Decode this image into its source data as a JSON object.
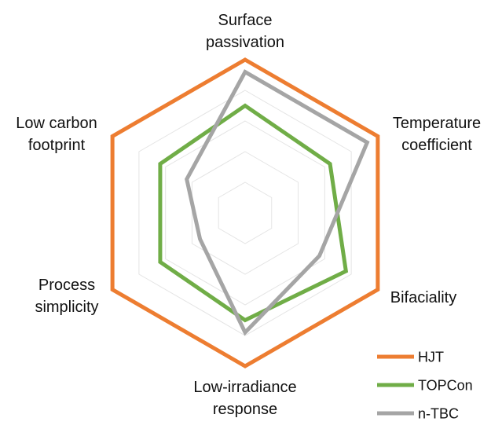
{
  "chart_data": {
    "type": "radar",
    "axes": [
      {
        "label_lines": [
          "Surface",
          "passivation"
        ]
      },
      {
        "label_lines": [
          "Temperature",
          "coefficient"
        ]
      },
      {
        "label_lines": [
          "Bifaciality"
        ]
      },
      {
        "label_lines": [
          "Low-irradiance",
          "response"
        ]
      },
      {
        "label_lines": [
          "Process",
          "simplicity"
        ]
      },
      {
        "label_lines": [
          "Low carbon",
          "footprint"
        ]
      }
    ],
    "scale": {
      "min": 0,
      "max": 5,
      "grid_levels": 5
    },
    "series": [
      {
        "name": "HJT",
        "color": "#ED7D31",
        "values": [
          5,
          5,
          5,
          5,
          5,
          5
        ]
      },
      {
        "name": "TOPCon",
        "color": "#70AD47",
        "values": [
          3.5,
          3.2,
          3.8,
          3.5,
          3.2,
          3.2
        ]
      },
      {
        "name": "n-TBC",
        "color": "#A5A5A5",
        "values": [
          4.6,
          4.6,
          2.8,
          3.9,
          1.7,
          2.2
        ]
      }
    ],
    "legend_position": "bottom-right",
    "grid": true
  }
}
